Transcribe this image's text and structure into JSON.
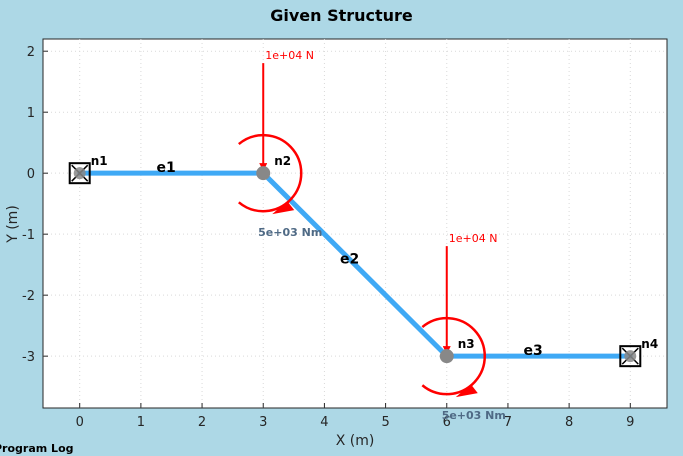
{
  "title": "Given Structure",
  "log_label": "Program Log",
  "colors": {
    "background": "#add8e6",
    "element": "#3fa9f5",
    "load": "#ff0000",
    "moment_text": "#4f6a85",
    "node": "#888888"
  },
  "chart_data": {
    "type": "structure",
    "xlabel": "X (m)",
    "ylabel": "Y (m)",
    "xlim": [
      -0.6,
      9.6
    ],
    "ylim": [
      -3.85,
      2.2
    ],
    "xticks": [
      0,
      1,
      2,
      3,
      4,
      5,
      6,
      7,
      8,
      9
    ],
    "yticks": [
      2,
      1,
      0,
      -1,
      -2,
      -3
    ],
    "grid": true,
    "nodes": [
      {
        "name": "n1",
        "x": 0,
        "y": 0,
        "support": "fixed"
      },
      {
        "name": "n2",
        "x": 3,
        "y": 0,
        "support": "none"
      },
      {
        "name": "n3",
        "x": 6,
        "y": -3,
        "support": "none"
      },
      {
        "name": "n4",
        "x": 9,
        "y": -3,
        "support": "fixed"
      }
    ],
    "elements": [
      {
        "name": "e1",
        "from": "n1",
        "to": "n2"
      },
      {
        "name": "e2",
        "from": "n2",
        "to": "n3"
      },
      {
        "name": "e3",
        "from": "n3",
        "to": "n4"
      }
    ],
    "forces": [
      {
        "node": "n2",
        "label": "1e+04 N",
        "x": 3,
        "y": 0
      },
      {
        "node": "n3",
        "label": "1e+04 N",
        "x": 6,
        "y": -3
      }
    ],
    "moments": [
      {
        "node": "n2",
        "label": "5e+03 Nm",
        "x": 3,
        "y": 0
      },
      {
        "node": "n3",
        "label": "5e+03 Nm",
        "x": 6,
        "y": -3
      }
    ]
  }
}
